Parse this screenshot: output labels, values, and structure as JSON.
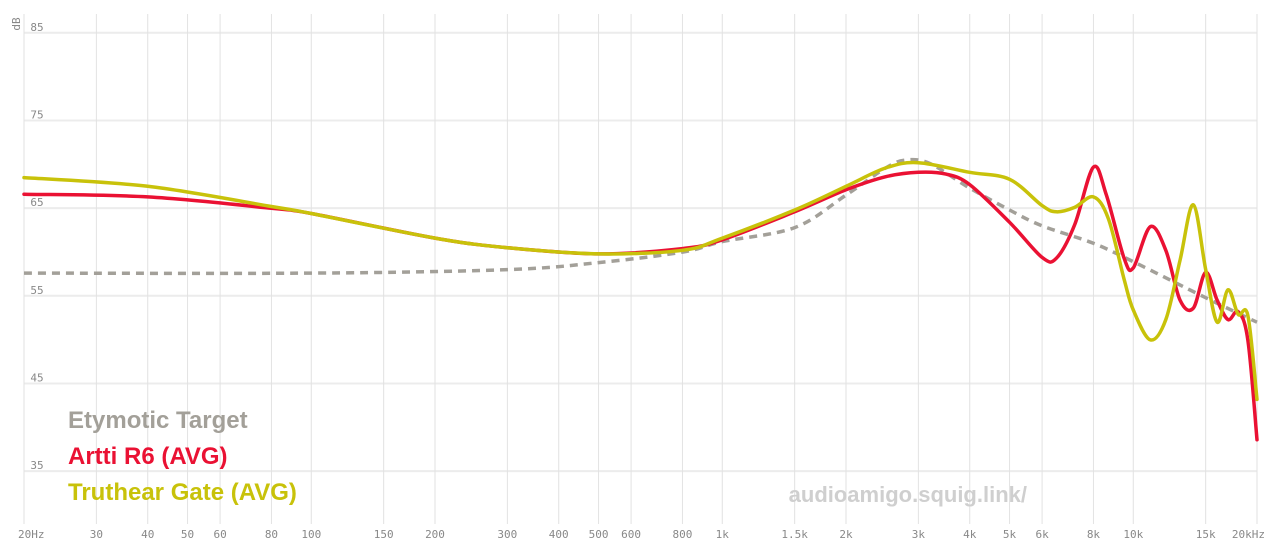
{
  "chart_data": {
    "type": "line",
    "y_label": "dB",
    "watermark": "audioamigo.squig.link/",
    "xscale": "log",
    "xlim": [
      20,
      20000
    ],
    "xticks": [
      {
        "value": 20,
        "label": "20Hz"
      },
      30,
      40,
      50,
      60,
      80,
      100,
      150,
      200,
      300,
      400,
      500,
      600,
      800,
      {
        "value": 1000,
        "label": "1k"
      },
      {
        "value": 1500,
        "label": "1.5k"
      },
      {
        "value": 2000,
        "label": "2k"
      },
      {
        "value": 3000,
        "label": "3k"
      },
      {
        "value": 4000,
        "label": "4k"
      },
      {
        "value": 5000,
        "label": "5k"
      },
      {
        "value": 6000,
        "label": "6k"
      },
      {
        "value": 8000,
        "label": "8k"
      },
      {
        "value": 10000,
        "label": "10k"
      },
      {
        "value": 15000,
        "label": "15k"
      },
      {
        "value": 20000,
        "label": "20kHz"
      }
    ],
    "ylim": [
      30,
      86
    ],
    "yticks": [
      35,
      45,
      55,
      65,
      75,
      85
    ],
    "grid": true,
    "legend": "lower left",
    "series": [
      {
        "name": "Etymotic Target",
        "color": "#a3a099",
        "dashed": true,
        "x": [
          20,
          100,
          300,
          500,
          800,
          1000,
          1500,
          2000,
          2500,
          2800,
          3200,
          4000,
          5000,
          6000,
          8000,
          10000,
          15000,
          20000
        ],
        "values": [
          56.9,
          56.9,
          57.3,
          58.1,
          59.3,
          60.5,
          62.1,
          65.8,
          68.9,
          69.8,
          69.4,
          66.6,
          64.1,
          62.3,
          60.3,
          58.2,
          54.1,
          51.3
        ]
      },
      {
        "name": "Artti R6 (AVG)",
        "color": "#ea1133",
        "x": [
          20,
          40,
          80,
          100,
          200,
          300,
          500,
          800,
          1000,
          1500,
          2000,
          2500,
          3000,
          3500,
          4000,
          5000,
          6000,
          6500,
          7200,
          8000,
          8600,
          9500,
          10000,
          11000,
          12000,
          13000,
          14000,
          15000,
          16000,
          17000,
          18000,
          19000,
          20000
        ],
        "values": [
          65.9,
          65.6,
          64.3,
          63.7,
          60.9,
          59.8,
          59.1,
          59.7,
          60.7,
          63.9,
          66.4,
          67.9,
          68.4,
          68.2,
          67.0,
          62.7,
          58.7,
          58.6,
          62.4,
          69.0,
          65.8,
          58.6,
          57.5,
          62.2,
          59.5,
          53.8,
          52.9,
          57.0,
          53.8,
          51.6,
          52.5,
          49.3,
          37.9
        ]
      },
      {
        "name": "Truthear Gate (AVG)",
        "color": "#c8c20a",
        "x": [
          20,
          40,
          80,
          100,
          200,
          300,
          500,
          800,
          1000,
          1500,
          2000,
          2500,
          3000,
          4000,
          5000,
          6000,
          6500,
          7200,
          8000,
          8700,
          9500,
          10000,
          11000,
          12000,
          13000,
          14000,
          15000,
          16000,
          17000,
          18000,
          19000,
          20000
        ],
        "values": [
          67.8,
          66.8,
          64.5,
          63.7,
          60.9,
          59.8,
          59.1,
          59.5,
          60.9,
          64.1,
          66.8,
          68.9,
          69.5,
          68.4,
          67.6,
          64.6,
          63.9,
          64.4,
          65.6,
          63.1,
          56.2,
          52.7,
          49.3,
          51.6,
          58.4,
          64.7,
          57.3,
          51.3,
          55.0,
          52.2,
          52.1,
          42.5
        ]
      }
    ]
  }
}
